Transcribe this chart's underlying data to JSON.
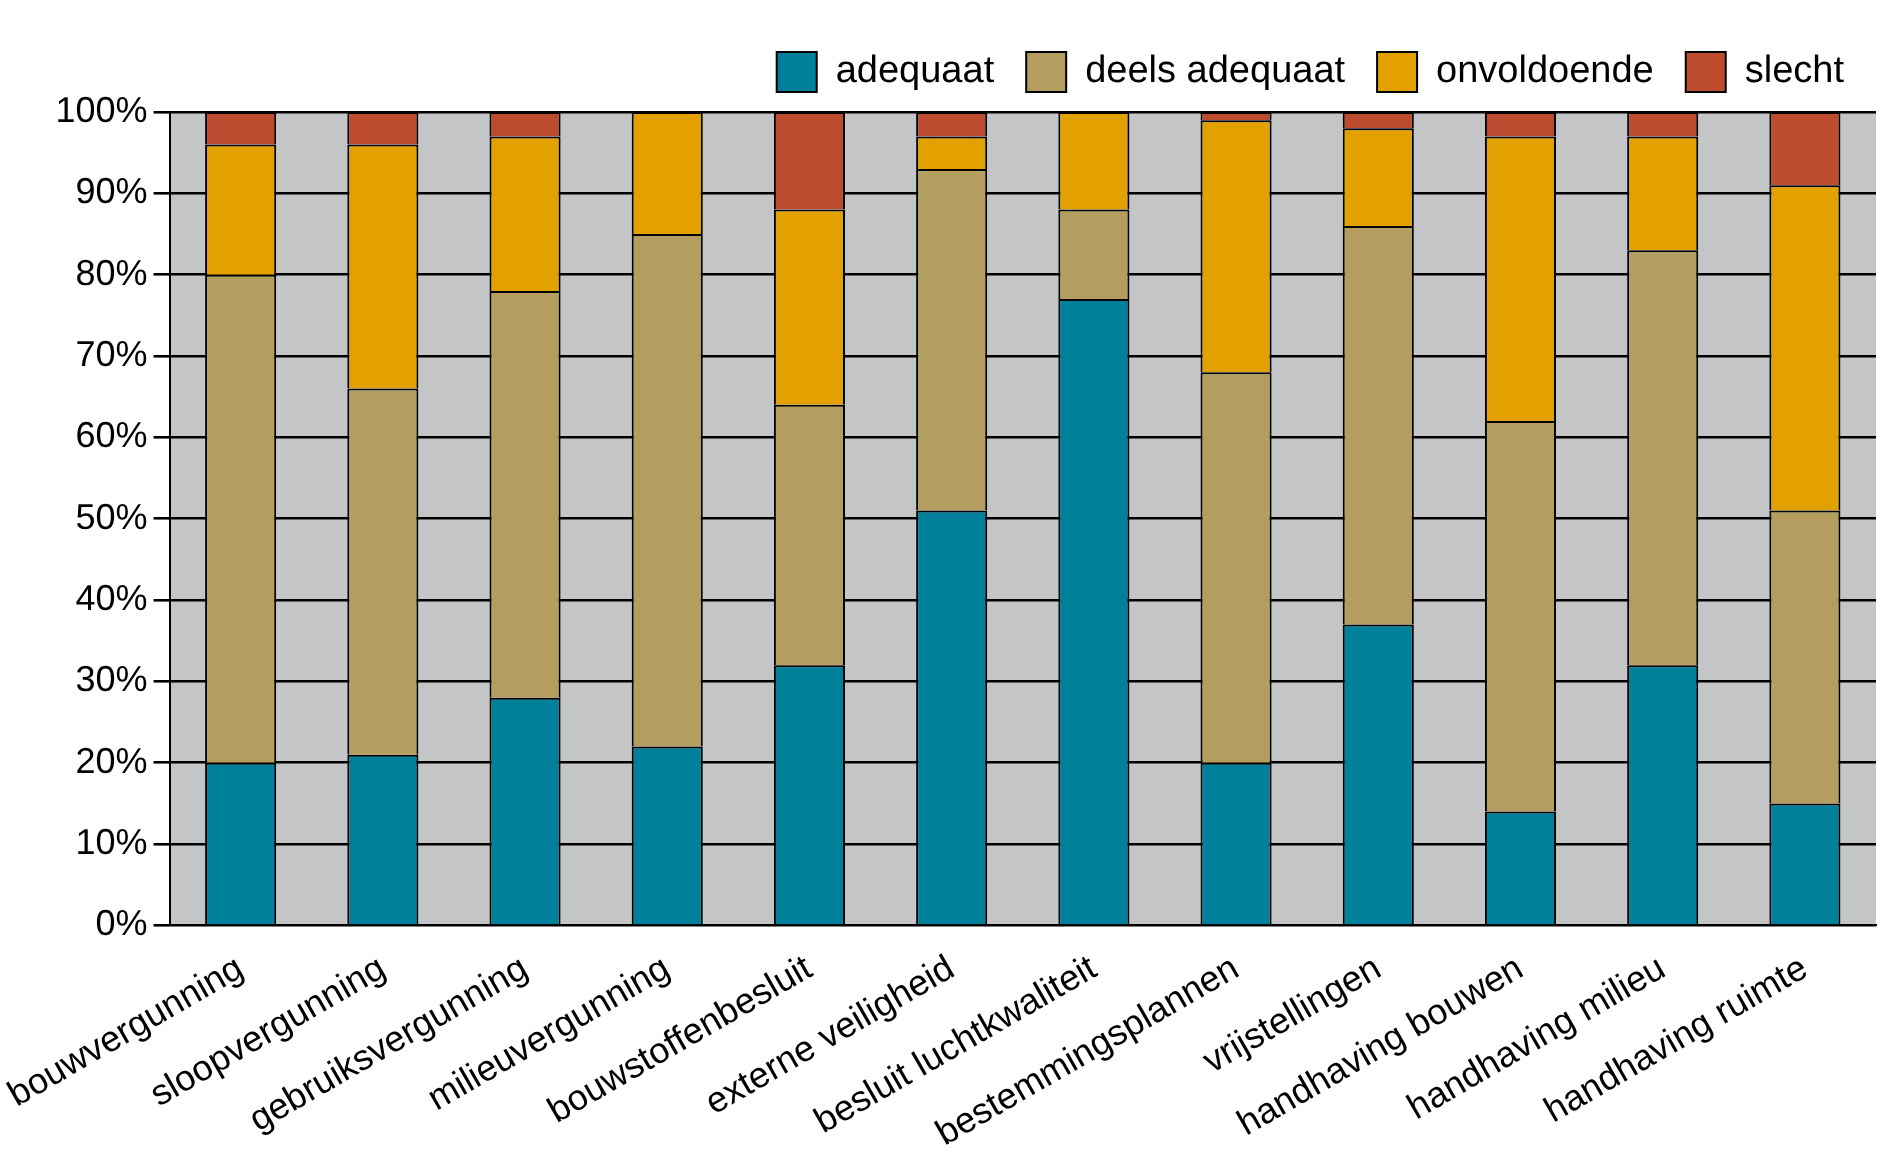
{
  "chart_data": {
    "type": "bar",
    "stacked": true,
    "categories": [
      "bouwvergunning",
      "sloopvergunning",
      "gebruiksvergunning",
      "milieuvergunning",
      "bouwstoffenbesluit",
      "externe veiligheid",
      "besluit luchtkwaliteit",
      "bestemmingsplannen",
      "vrijstellingen",
      "handhaving bouwen",
      "handhaving milieu",
      "handhaving ruimte"
    ],
    "series": [
      {
        "name": "adequaat",
        "color": "#00809a",
        "values": [
          20,
          21,
          28,
          22,
          32,
          51,
          77,
          20,
          37,
          14,
          32,
          15
        ]
      },
      {
        "name": "deels adequaat",
        "color": "#b39e60",
        "values": [
          60,
          45,
          50,
          63,
          32,
          42,
          11,
          48,
          49,
          48,
          51,
          36
        ]
      },
      {
        "name": "onvoldoende",
        "color": "#e3a100",
        "values": [
          16,
          30,
          19,
          15,
          24,
          4,
          12,
          31,
          12,
          35,
          14,
          40
        ]
      },
      {
        "name": "slecht",
        "color": "#bd4b2f",
        "values": [
          4,
          4,
          3,
          0,
          12,
          3,
          0,
          1,
          2,
          3,
          3,
          9
        ]
      }
    ],
    "ylim": [
      0,
      100
    ],
    "yticks": [
      {
        "value": 0,
        "label": "0%"
      },
      {
        "value": 10,
        "label": "10%"
      },
      {
        "value": 20,
        "label": "20%"
      },
      {
        "value": 30,
        "label": "30%"
      },
      {
        "value": 40,
        "label": "40%"
      },
      {
        "value": 50,
        "label": "50%"
      },
      {
        "value": 60,
        "label": "60%"
      },
      {
        "value": 70,
        "label": "70%"
      },
      {
        "value": 80,
        "label": "80%"
      },
      {
        "value": 90,
        "label": "90%"
      },
      {
        "value": 100,
        "label": "100%"
      }
    ],
    "grid": "y",
    "legend": "top"
  }
}
